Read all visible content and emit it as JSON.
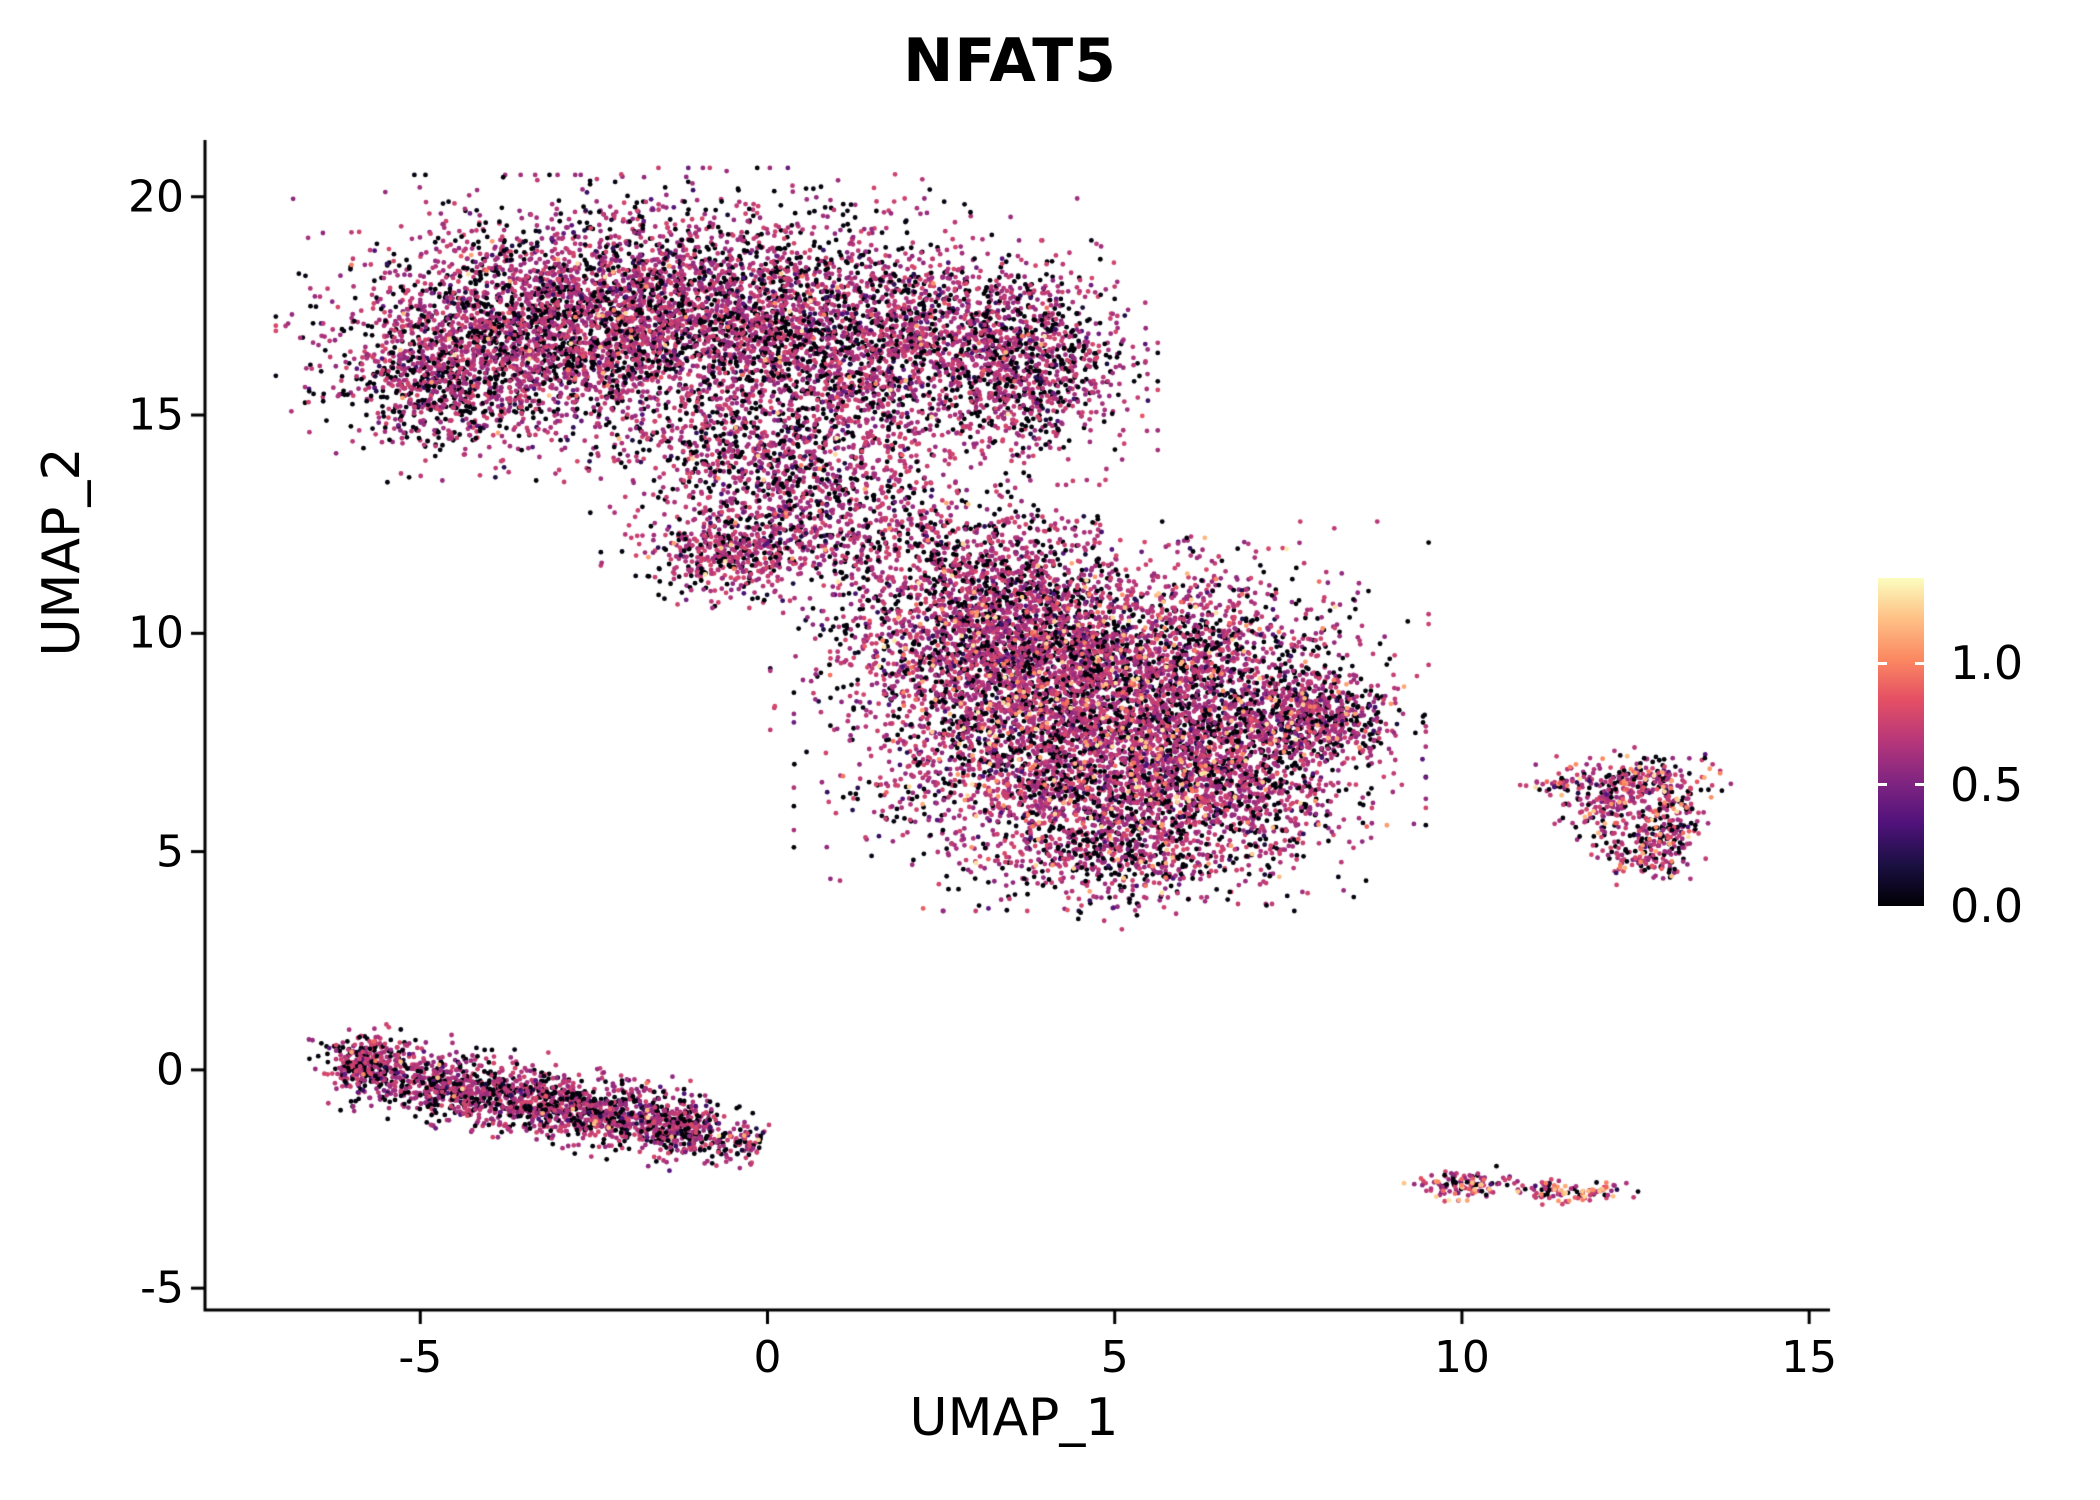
{
  "title": "NFAT5",
  "chart_data": {
    "type": "scatter",
    "title": "NFAT5",
    "xlabel": "UMAP_1",
    "ylabel": "UMAP_2",
    "xlim": [
      -8.1,
      15.3
    ],
    "ylim": [
      -5.5,
      21.3
    ],
    "xticks": [
      -5,
      0,
      5,
      10,
      15
    ],
    "yticks": [
      -5,
      0,
      5,
      10,
      15,
      20
    ],
    "grid": false,
    "legend_position": "right-colorbar",
    "background_color": "#ffffff",
    "axis_color": "#000000",
    "point_radius_px": 2.4,
    "colormap_name": "magma",
    "colormap_stops": [
      [
        0.0,
        "#000004"
      ],
      [
        0.13,
        "#1c1044"
      ],
      [
        0.25,
        "#4f127b"
      ],
      [
        0.38,
        "#812581"
      ],
      [
        0.5,
        "#b5367a"
      ],
      [
        0.63,
        "#e55064"
      ],
      [
        0.75,
        "#fb8761"
      ],
      [
        0.88,
        "#fec287"
      ],
      [
        1.0,
        "#fcfdbf"
      ]
    ],
    "colorbar": {
      "vmin": 0,
      "vmax": 1.35,
      "ticks": [
        {
          "v": 1.0,
          "label": "1.0"
        },
        {
          "v": 0.5,
          "label": "0.5"
        },
        {
          "v": 0.0,
          "label": "0.0"
        }
      ]
    },
    "clusters": [
      {
        "name": "upper-left-lobe",
        "kind": "gauss",
        "cx": -3.3,
        "cy": 17.0,
        "sx": 1.35,
        "sy": 1.25,
        "n": 2400,
        "f0": 0.3,
        "fh": 0.015
      },
      {
        "name": "upper-mid-lobe",
        "kind": "gauss",
        "cx": -0.8,
        "cy": 17.3,
        "sx": 1.5,
        "sy": 1.2,
        "n": 2400,
        "f0": 0.3,
        "fh": 0.015
      },
      {
        "name": "upper-right-lobe",
        "kind": "gauss",
        "cx": 1.8,
        "cy": 16.6,
        "sx": 1.3,
        "sy": 1.2,
        "n": 1700,
        "f0": 0.3,
        "fh": 0.015
      },
      {
        "name": "upper-far-right-lobe",
        "kind": "gauss",
        "cx": 3.8,
        "cy": 16.2,
        "sx": 0.65,
        "sy": 1.0,
        "n": 900,
        "f0": 0.32,
        "fh": 0.012
      },
      {
        "name": "upper-left-edge",
        "kind": "gauss",
        "cx": -4.7,
        "cy": 15.7,
        "sx": 0.7,
        "sy": 0.8,
        "n": 600,
        "f0": 0.34,
        "fh": 0.01
      },
      {
        "name": "upper-lower-tail",
        "kind": "gauss",
        "cx": 0.2,
        "cy": 14.2,
        "sx": 1.1,
        "sy": 0.8,
        "n": 800,
        "f0": 0.3,
        "fh": 0.015
      },
      {
        "name": "neck-blob",
        "kind": "gauss",
        "cx": 0.4,
        "cy": 12.3,
        "sx": 1.0,
        "sy": 0.75,
        "n": 700,
        "f0": 0.28,
        "fh": 0.02
      },
      {
        "name": "neck-left-spur",
        "kind": "gauss",
        "cx": -0.7,
        "cy": 11.7,
        "sx": 0.5,
        "sy": 0.4,
        "n": 250,
        "f0": 0.28,
        "fh": 0.02
      },
      {
        "name": "neck-bridge",
        "kind": "gauss",
        "cx": 2.4,
        "cy": 12.1,
        "sx": 0.85,
        "sy": 0.85,
        "n": 260,
        "f0": 0.3,
        "fh": 0.02
      },
      {
        "name": "central-upper-left",
        "kind": "gauss",
        "cx": 3.4,
        "cy": 9.6,
        "sx": 1.2,
        "sy": 1.1,
        "n": 2000,
        "f0": 0.26,
        "fh": 0.05
      },
      {
        "name": "central-upper-right",
        "kind": "gauss",
        "cx": 5.6,
        "cy": 9.2,
        "sx": 1.4,
        "sy": 1.2,
        "n": 2300,
        "f0": 0.26,
        "fh": 0.05
      },
      {
        "name": "central-lower-left",
        "kind": "gauss",
        "cx": 4.3,
        "cy": 7.0,
        "sx": 1.4,
        "sy": 1.2,
        "n": 2100,
        "f0": 0.27,
        "fh": 0.045
      },
      {
        "name": "central-lower-right",
        "kind": "gauss",
        "cx": 6.4,
        "cy": 6.6,
        "sx": 1.1,
        "sy": 1.0,
        "n": 1400,
        "f0": 0.27,
        "fh": 0.045
      },
      {
        "name": "central-right-tip",
        "kind": "gauss",
        "cx": 7.9,
        "cy": 8.1,
        "sx": 0.55,
        "sy": 0.5,
        "n": 500,
        "f0": 0.3,
        "fh": 0.05
      },
      {
        "name": "central-top-spur",
        "kind": "gauss",
        "cx": 3.4,
        "cy": 11.2,
        "sx": 0.8,
        "sy": 0.7,
        "n": 450,
        "f0": 0.28,
        "fh": 0.03
      },
      {
        "name": "central-bottom-tip",
        "kind": "gauss",
        "cx": 5.1,
        "cy": 4.9,
        "sx": 0.9,
        "sy": 0.6,
        "n": 450,
        "f0": 0.3,
        "fh": 0.04
      },
      {
        "name": "right-island-top",
        "kind": "gauss",
        "cx": 12.5,
        "cy": 6.6,
        "sx": 0.55,
        "sy": 0.3,
        "n": 220,
        "f0": 0.25,
        "fh": 0.12
      },
      {
        "name": "right-island-right",
        "kind": "gauss",
        "cx": 12.95,
        "cy": 5.6,
        "sx": 0.25,
        "sy": 0.55,
        "n": 200,
        "f0": 0.25,
        "fh": 0.12
      },
      {
        "name": "right-island-left",
        "kind": "gauss",
        "cx": 12.1,
        "cy": 5.9,
        "sx": 0.3,
        "sy": 0.35,
        "n": 130,
        "f0": 0.25,
        "fh": 0.1
      },
      {
        "name": "right-island-bottom",
        "kind": "gauss",
        "cx": 12.55,
        "cy": 4.95,
        "sx": 0.3,
        "sy": 0.28,
        "n": 90,
        "f0": 0.25,
        "fh": 0.12
      },
      {
        "name": "right-island-spur",
        "kind": "gauss",
        "cx": 11.35,
        "cy": 6.55,
        "sx": 0.2,
        "sy": 0.1,
        "n": 35,
        "f0": 0.3,
        "fh": 0.08
      },
      {
        "name": "bottom-stripe-main",
        "kind": "stripe",
        "x1": -6.1,
        "y1": 0.15,
        "x2": -0.9,
        "y2": -1.35,
        "w": 0.38,
        "n": 1300,
        "f0": 0.32,
        "fh": 0.012
      },
      {
        "name": "bottom-stripe-lower",
        "kind": "stripe",
        "x1": -4.9,
        "y1": -0.35,
        "x2": -0.1,
        "y2": -1.75,
        "w": 0.3,
        "n": 800,
        "f0": 0.32,
        "fh": 0.012
      },
      {
        "name": "bottom-stripe-tip",
        "kind": "gauss",
        "cx": -5.8,
        "cy": 0.2,
        "sx": 0.35,
        "sy": 0.3,
        "n": 150,
        "f0": 0.34,
        "fh": 0.01
      },
      {
        "name": "south-island-left",
        "kind": "gauss",
        "cx": 9.95,
        "cy": -2.62,
        "sx": 0.28,
        "sy": 0.16,
        "n": 110,
        "f0": 0.18,
        "fh": 0.2
      },
      {
        "name": "south-island-right",
        "kind": "gauss",
        "cx": 11.45,
        "cy": -2.78,
        "sx": 0.4,
        "sy": 0.13,
        "n": 90,
        "f0": 0.18,
        "fh": 0.2
      },
      {
        "name": "south-island-dot",
        "kind": "gauss",
        "cx": 10.6,
        "cy": -2.55,
        "sx": 0.06,
        "sy": 0.05,
        "n": 6,
        "f0": 0.2,
        "fh": 0.2
      },
      {
        "name": "south-island-tip",
        "kind": "gauss",
        "cx": 12.05,
        "cy": -2.72,
        "sx": 0.1,
        "sy": 0.08,
        "n": 18,
        "f0": 0.18,
        "fh": 0.25
      }
    ]
  }
}
